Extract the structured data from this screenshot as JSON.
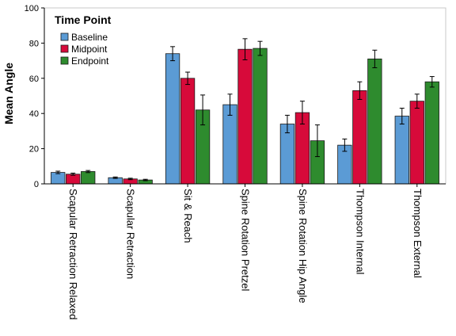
{
  "chart_data": {
    "type": "bar",
    "ylabel": "Mean Angle",
    "xlabel": "",
    "ylim": [
      0,
      100
    ],
    "yticks": [
      0,
      20,
      40,
      60,
      80,
      100
    ],
    "categories": [
      "Scapular Retraction Relaxed",
      "Scapular Retraction",
      "Sit & Reach",
      "Spine Rotation Pretzel",
      "Spine Rotation Hip Angle",
      "Thompson Internal",
      "Thompson External"
    ],
    "series": [
      {
        "name": "Baseline",
        "color": "#5b9bd5",
        "values": [
          6.5,
          3.5,
          74,
          45,
          34,
          22,
          38.5
        ],
        "error": [
          0.7,
          0.4,
          4,
          6,
          5,
          3.5,
          4.5
        ]
      },
      {
        "name": "Midpoint",
        "color": "#d70a3a",
        "values": [
          5.5,
          2.8,
          60,
          76.5,
          40.5,
          53,
          47
        ],
        "error": [
          0.6,
          0.4,
          3.5,
          6,
          6.5,
          5,
          4
        ]
      },
      {
        "name": "Endpoint",
        "color": "#2e8b2e",
        "values": [
          7,
          2.2,
          42,
          77,
          24.5,
          71,
          58
        ],
        "error": [
          0.6,
          0.4,
          8.5,
          4,
          9,
          5,
          3
        ]
      }
    ],
    "legend": {
      "title": "Time Point",
      "placement": "top-left"
    },
    "error_bars": true,
    "grid": false
  }
}
